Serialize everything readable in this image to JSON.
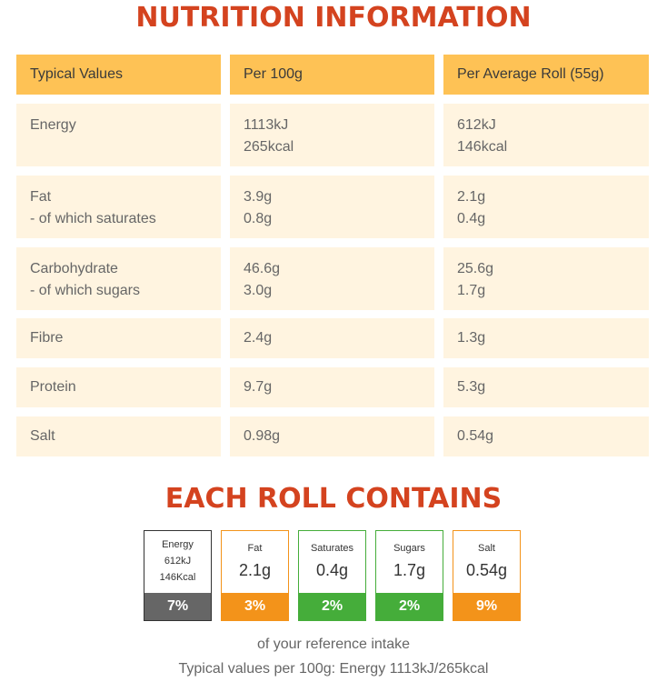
{
  "title": "NUTRITION INFORMATION",
  "table": {
    "headers": [
      "Typical Values",
      "Per 100g",
      "Per Average Roll (55g)"
    ],
    "rows": [
      {
        "name": [
          "Energy"
        ],
        "per100": [
          "1113kJ",
          "265kcal"
        ],
        "perRoll": [
          "612kJ",
          "146kcal"
        ]
      },
      {
        "name": [
          "Fat",
          "- of which saturates"
        ],
        "per100": [
          "3.9g",
          "0.8g"
        ],
        "perRoll": [
          "2.1g",
          "0.4g"
        ]
      },
      {
        "name": [
          "Carbohydrate",
          "- of which sugars"
        ],
        "per100": [
          "46.6g",
          "3.0g"
        ],
        "perRoll": [
          "25.6g",
          "1.7g"
        ]
      },
      {
        "name": [
          "Fibre"
        ],
        "per100": [
          "2.4g"
        ],
        "perRoll": [
          "1.3g"
        ]
      },
      {
        "name": [
          "Protein"
        ],
        "per100": [
          "9.7g"
        ],
        "perRoll": [
          "5.3g"
        ]
      },
      {
        "name": [
          "Salt"
        ],
        "per100": [
          "0.98g"
        ],
        "perRoll": [
          "0.54g"
        ]
      }
    ]
  },
  "roll_title": "EACH ROLL CONTAINS",
  "badges": {
    "energy": {
      "label": "Energy",
      "kj": "612kJ",
      "kcal": "146Kcal",
      "pct": "7%",
      "color": "#666666"
    },
    "fat": {
      "label": "Fat",
      "value": "2.1g",
      "pct": "3%",
      "color": "#f3931a"
    },
    "saturates": {
      "label": "Saturates",
      "value": "0.4g",
      "pct": "2%",
      "color": "#45ad3a"
    },
    "sugars": {
      "label": "Sugars",
      "value": "1.7g",
      "pct": "2%",
      "color": "#45ad3a"
    },
    "salt": {
      "label": "Salt",
      "value": "0.54g",
      "pct": "9%",
      "color": "#f3931a"
    }
  },
  "footer": {
    "line1": "of your reference intake",
    "line2": "Typical values per 100g: Energy 1113kJ/265kcal"
  },
  "colors": {
    "title": "#d4431f",
    "header_bg": "#fec255",
    "row_bg": "#fff4e0"
  }
}
